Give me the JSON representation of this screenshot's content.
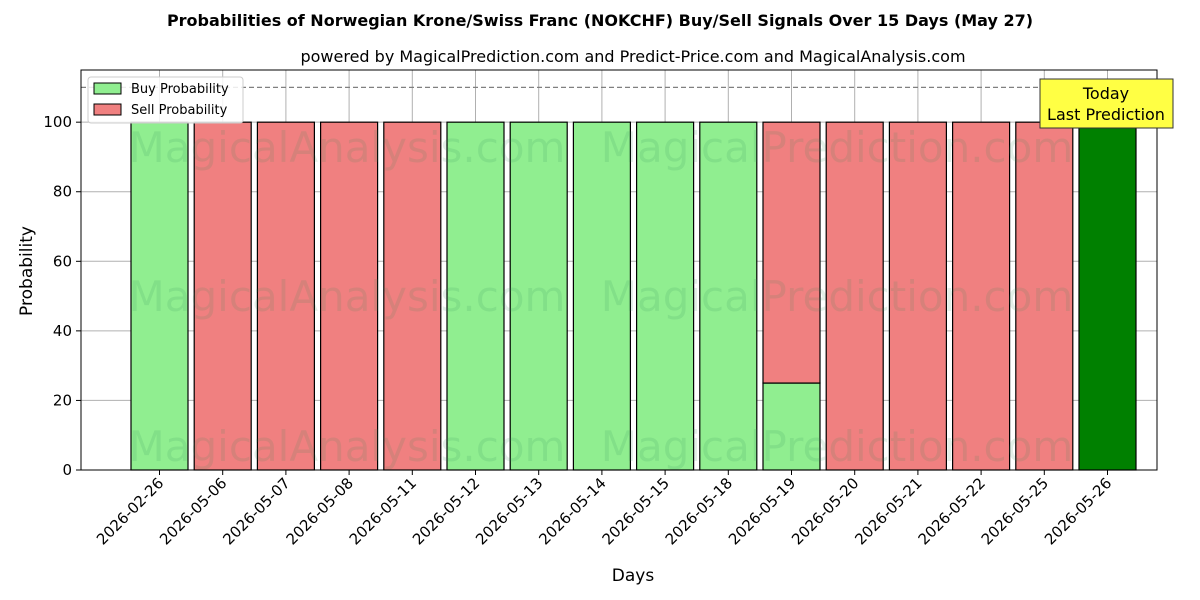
{
  "chart_data": {
    "type": "bar",
    "title": "Probabilities of Norwegian Krone/Swiss Franc (NOKCHF) Buy/Sell Signals Over 15 Days (May 27)",
    "subtitle": "powered by MagicalPrediction.com and Predict-Price.com and MagicalAnalysis.com",
    "xlabel": "Days",
    "ylabel": "Probability",
    "ylim": [
      0,
      115
    ],
    "yticks": [
      0,
      20,
      40,
      60,
      80,
      100
    ],
    "grid": true,
    "legend_position": "top-left",
    "categories": [
      "2026-02-26",
      "2026-05-06",
      "2026-05-07",
      "2026-05-08",
      "2026-05-11",
      "2026-05-12",
      "2026-05-13",
      "2026-05-14",
      "2026-05-15",
      "2026-05-18",
      "2026-05-19",
      "2026-05-20",
      "2026-05-21",
      "2026-05-22",
      "2026-05-25",
      "2026-05-26"
    ],
    "series": [
      {
        "name": "Buy Probability",
        "color": "#90ee90",
        "values": [
          100,
          0,
          0,
          0,
          0,
          100,
          100,
          100,
          100,
          100,
          25,
          0,
          0,
          0,
          0,
          100
        ]
      },
      {
        "name": "Sell Probability",
        "color": "#f08080",
        "values": [
          0,
          100,
          100,
          100,
          100,
          0,
          0,
          0,
          0,
          0,
          75,
          100,
          100,
          100,
          100,
          0
        ]
      }
    ],
    "highlight": {
      "index": 15,
      "color": "#008000"
    },
    "reference_line": {
      "y": 110,
      "style": "dashed",
      "color": "#808080"
    },
    "annotation": {
      "lines": [
        "Today",
        "Last Prediction"
      ],
      "background": "#ffff44"
    },
    "watermarks": [
      "MagicalAnalysis.com",
      "MagicalPrediction.com"
    ]
  }
}
